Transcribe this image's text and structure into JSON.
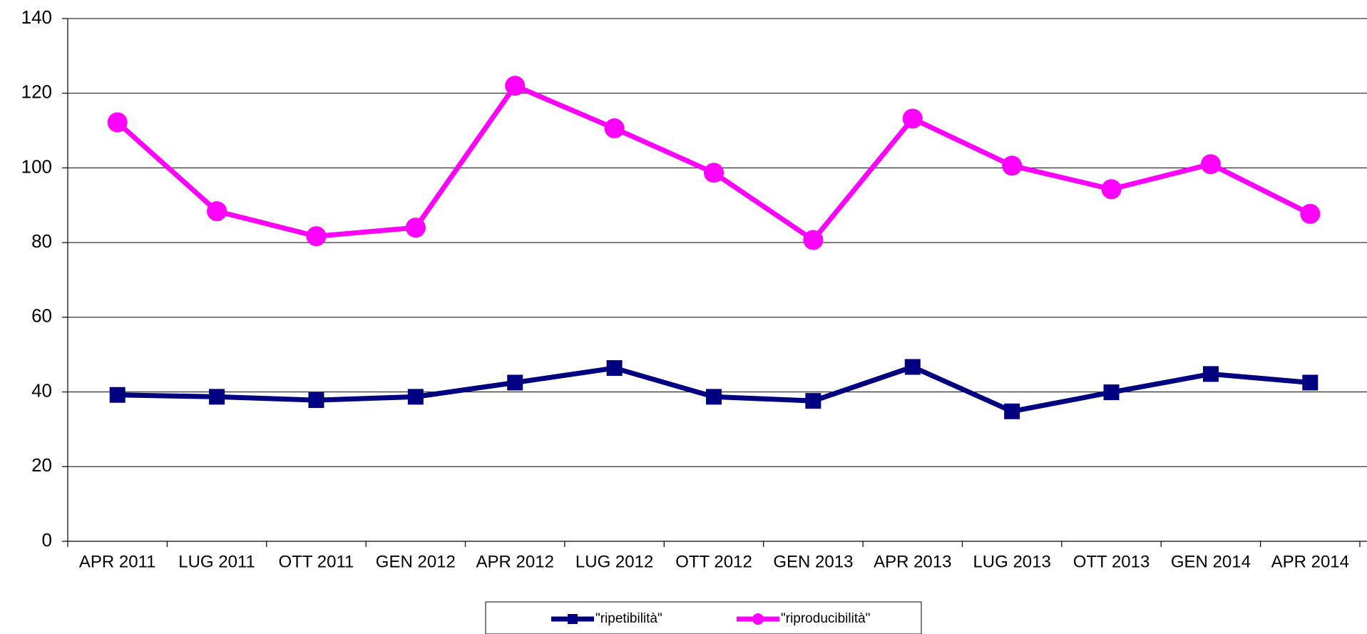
{
  "chart_data": {
    "type": "line",
    "categories": [
      "APR 2011",
      "LUG 2011",
      "OTT 2011",
      "GEN 2012",
      "APR 2012",
      "LUG 2012",
      "OTT 2012",
      "GEN 2013",
      "APR 2013",
      "LUG 2013",
      "OTT 2013",
      "GEN 2014",
      "APR 2014"
    ],
    "series": [
      {
        "name": "\"ripetibilità\"",
        "color": "#000080",
        "marker": "square",
        "values": [
          39.2,
          38.7,
          37.8,
          38.7,
          42.5,
          46.4,
          38.7,
          37.6,
          46.7,
          34.8,
          39.9,
          44.8,
          42.5
        ]
      },
      {
        "name": "\"riproducibilità\"",
        "color": "#ff00ff",
        "marker": "circle",
        "values": [
          112.2,
          88.4,
          81.7,
          84,
          122,
          110.6,
          98.7,
          80.7,
          113.2,
          100.6,
          94.3,
          101,
          87.7
        ]
      }
    ],
    "ylim": [
      0,
      140
    ],
    "yticks": [
      0,
      20,
      40,
      60,
      80,
      100,
      120,
      140
    ],
    "grid": true,
    "legend": "bottom"
  }
}
